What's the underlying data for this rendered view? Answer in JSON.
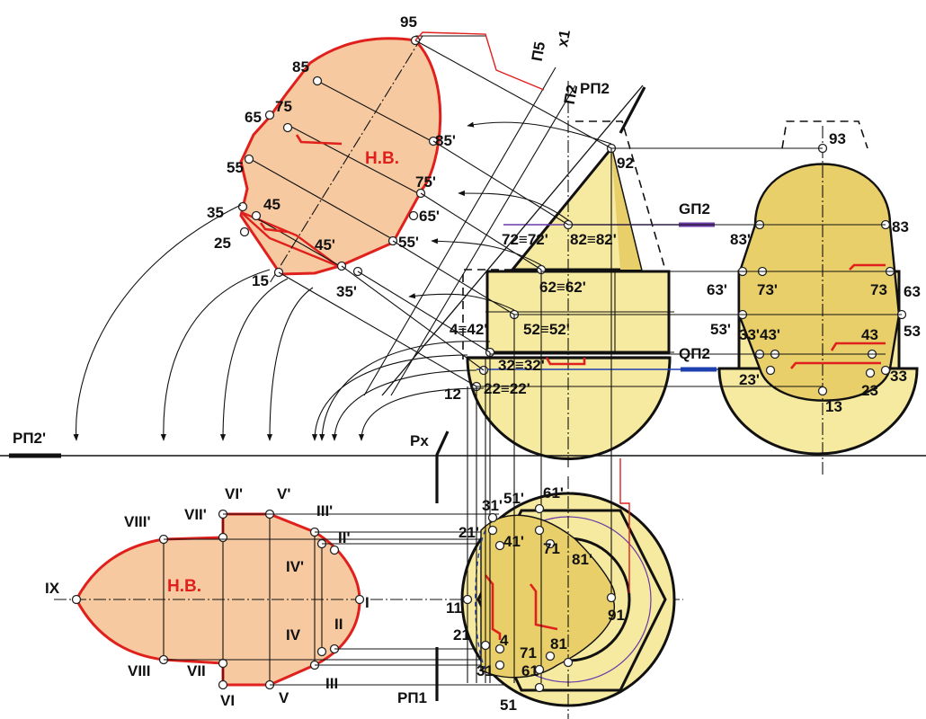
{
  "colors": {
    "solid_fill": "#f6e9a0",
    "solid_fill_dark": "#e8cf6a",
    "section_fill": "#f7c9a0",
    "section_outline": "#e0201c",
    "plane_g": "#6a3aa8",
    "plane_q": "#1d3fb0",
    "line": "#111111"
  },
  "labels": {
    "hv_top": "Н.В.",
    "hv_bottom": "Н.В.",
    "pi5": "П5",
    "x1": "x1",
    "pi2": "П2",
    "p_pi2": "PП2",
    "p_pi2_prime": "PП2'",
    "g_pi2": "GП2",
    "q_pi2": "QП2",
    "p_x": "Px",
    "p_pi1": "PП1"
  },
  "points": {
    "top_view": [
      "95",
      "85",
      "75",
      "65",
      "55",
      "45",
      "35",
      "25",
      "15",
      "85'",
      "75'",
      "65'",
      "55'",
      "45'",
      "35'"
    ],
    "front_view": [
      "92",
      "82≡82'",
      "72≡72'",
      "62≡62'",
      "52≡52'",
      "4≡42'",
      "32≡32'",
      "22≡22'",
      "12"
    ],
    "side_view": [
      "93",
      "83",
      "83'",
      "73",
      "73'",
      "63",
      "63'",
      "53",
      "53'",
      "43",
      "43'",
      "33",
      "33'",
      "23",
      "23'",
      "13"
    ],
    "bottom_section": [
      "IX",
      "VIII'",
      "VIII",
      "VII'",
      "VII",
      "VI'",
      "VI",
      "V'",
      "V",
      "IV'",
      "IV",
      "III'",
      "III",
      "II'",
      "II",
      "I"
    ],
    "plan_view": [
      "51'",
      "61'",
      "31'",
      "21'",
      "41'",
      "71",
      "81'",
      "91",
      "11",
      "21",
      "71",
      "81",
      "61",
      "31",
      "51",
      "4"
    ]
  }
}
